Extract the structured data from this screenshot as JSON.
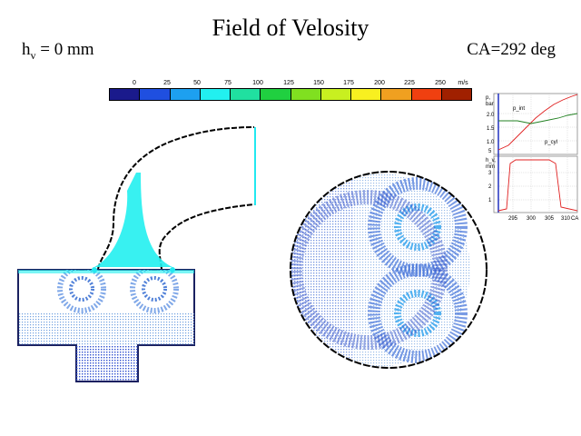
{
  "header": {
    "title": "Field of Velosity",
    "hv_label": "h",
    "hv_sub": "v",
    "hv_value": " = 0 mm",
    "ca_label": "CA=292 deg"
  },
  "colorbar": {
    "ticks": [
      "0",
      "25",
      "50",
      "75",
      "100",
      "125",
      "150",
      "175",
      "200",
      "225",
      "250"
    ],
    "unit": "m/s",
    "colors": [
      "#1a1a8c",
      "#1f4fe0",
      "#1da0f0",
      "#22f0f0",
      "#20e0a0",
      "#20d040",
      "#80e020",
      "#c8f020",
      "#f8f020",
      "#f0a020",
      "#f04010",
      "#a02000"
    ]
  },
  "side_chart": {
    "top_ylabel": "p,\nbar",
    "top_yticks": [
      "2.5",
      "2.0",
      "1.5",
      "1.0",
      "5"
    ],
    "series_labels": [
      "p_int",
      "p_cyl"
    ],
    "bottom_ylabel": "h_v,\nmm",
    "bottom_yticks": [
      "3",
      "2",
      "1"
    ],
    "xticks": [
      "295",
      "300",
      "305",
      "310"
    ],
    "xunit": "CA"
  }
}
